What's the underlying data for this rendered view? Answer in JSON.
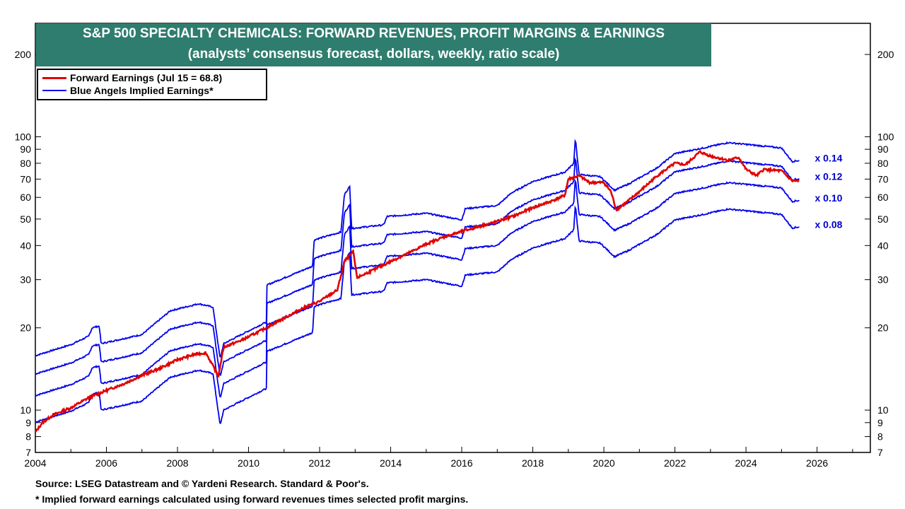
{
  "title": {
    "line1": "S&P 500 SPECIALTY CHEMICALS: FORWARD REVENUES, PROFIT MARGINS & EARNINGS",
    "line2": "(analysts’ consensus forecast, dollars, weekly, ratio scale)"
  },
  "legend": {
    "items": [
      {
        "label": "Forward Earnings (Jul 15 = 68.8)",
        "color": "#e00000"
      },
      {
        "label": "Blue Angels Implied Earnings*",
        "color": "#0000ee"
      }
    ]
  },
  "footer": {
    "source": "Source: LSEG Datastream and © Yardeni Research. Standard & Poor's.",
    "note": "* Implied forward earnings calculated using forward revenues times selected profit margins."
  },
  "colors": {
    "accent": "#2e7d6e",
    "earnings": "#e00000",
    "implied": "#0000ee",
    "multiplier_text": "#0000cc"
  },
  "chart_data": {
    "type": "line",
    "y_scale": "log",
    "ylim": [
      7,
      260
    ],
    "xlim": [
      2004,
      2027.5
    ],
    "x_ticks": [
      "2004",
      "2006",
      "2008",
      "2010",
      "2012",
      "2014",
      "2016",
      "2018",
      "2020",
      "2022",
      "2024",
      "2026"
    ],
    "y_ticks": [
      "7",
      "8",
      "9",
      "10",
      "20",
      "30",
      "40",
      "50",
      "60",
      "70",
      "80",
      "90",
      "100",
      "200"
    ],
    "grid": false,
    "legend_position": "top-left",
    "forward_revenues_per_share": [
      [
        2004.0,
        113
      ],
      [
        2005.0,
        124
      ],
      [
        2005.5,
        133
      ],
      [
        2005.6,
        143
      ],
      [
        2005.8,
        145
      ],
      [
        2005.85,
        125
      ],
      [
        2007.0,
        135
      ],
      [
        2007.8,
        165
      ],
      [
        2008.6,
        175
      ],
      [
        2009.0,
        170
      ],
      [
        2009.2,
        110
      ],
      [
        2009.3,
        125
      ],
      [
        2009.8,
        135
      ],
      [
        2010.5,
        150
      ],
      [
        2010.52,
        205
      ],
      [
        2011.8,
        240
      ],
      [
        2011.85,
        300
      ],
      [
        2012.6,
        320
      ],
      [
        2012.7,
        440
      ],
      [
        2012.85,
        470
      ],
      [
        2012.9,
        330
      ],
      [
        2013.8,
        340
      ],
      [
        2013.9,
        365
      ],
      [
        2015.0,
        375
      ],
      [
        2016.0,
        355
      ],
      [
        2016.1,
        390
      ],
      [
        2017.0,
        400
      ],
      [
        2017.4,
        445
      ],
      [
        2018.0,
        490
      ],
      [
        2018.9,
        530
      ],
      [
        2019.15,
        570
      ],
      [
        2019.2,
        710
      ],
      [
        2019.25,
        600
      ],
      [
        2019.3,
        520
      ],
      [
        2019.9,
        510
      ],
      [
        2020.3,
        455
      ],
      [
        2020.7,
        480
      ],
      [
        2021.0,
        505
      ],
      [
        2021.5,
        550
      ],
      [
        2022.0,
        620
      ],
      [
        2022.8,
        650
      ],
      [
        2023.5,
        680
      ],
      [
        2024.0,
        670
      ],
      [
        2024.5,
        660
      ],
      [
        2025.0,
        650
      ],
      [
        2025.3,
        580
      ],
      [
        2025.5,
        585
      ]
    ],
    "forward_earnings": [
      [
        2004.0,
        8.3
      ],
      [
        2004.2,
        9.0
      ],
      [
        2004.5,
        9.6
      ],
      [
        2005.0,
        10.2
      ],
      [
        2005.5,
        11.1
      ],
      [
        2006.0,
        11.8
      ],
      [
        2006.5,
        12.5
      ],
      [
        2007.0,
        13.4
      ],
      [
        2007.5,
        14.2
      ],
      [
        2008.0,
        15.3
      ],
      [
        2008.5,
        16.0
      ],
      [
        2008.8,
        16.2
      ],
      [
        2009.0,
        14.5
      ],
      [
        2009.15,
        13.3
      ],
      [
        2009.3,
        17.0
      ],
      [
        2009.8,
        18.0
      ],
      [
        2010.5,
        20.0
      ],
      [
        2011.0,
        21.7
      ],
      [
        2011.5,
        23.5
      ],
      [
        2012.0,
        25.0
      ],
      [
        2012.5,
        27.5
      ],
      [
        2012.7,
        35.0
      ],
      [
        2012.95,
        38.0
      ],
      [
        2013.05,
        30.5
      ],
      [
        2013.5,
        32.5
      ],
      [
        2014.0,
        35.0
      ],
      [
        2014.5,
        37.5
      ],
      [
        2015.0,
        40.5
      ],
      [
        2015.5,
        43.0
      ],
      [
        2016.0,
        45.0
      ],
      [
        2016.5,
        47.0
      ],
      [
        2017.0,
        49.0
      ],
      [
        2017.5,
        51.5
      ],
      [
        2018.0,
        55.0
      ],
      [
        2018.5,
        58.0
      ],
      [
        2018.9,
        61.0
      ],
      [
        2019.0,
        70.0
      ],
      [
        2019.3,
        72.0
      ],
      [
        2019.6,
        68.0
      ],
      [
        2020.0,
        68.0
      ],
      [
        2020.2,
        63.0
      ],
      [
        2020.35,
        54.0
      ],
      [
        2020.6,
        57.0
      ],
      [
        2021.0,
        63.0
      ],
      [
        2021.5,
        72.0
      ],
      [
        2022.0,
        80.0
      ],
      [
        2022.3,
        79.0
      ],
      [
        2022.7,
        88.0
      ],
      [
        2023.0,
        85.0
      ],
      [
        2023.5,
        82.0
      ],
      [
        2023.8,
        84.0
      ],
      [
        2024.0,
        76.0
      ],
      [
        2024.3,
        72.0
      ],
      [
        2024.5,
        76.0
      ],
      [
        2025.0,
        75.0
      ],
      [
        2025.3,
        69.0
      ],
      [
        2025.5,
        68.8
      ]
    ],
    "series": [
      {
        "multiplier": 0.14,
        "label": "x 0.14"
      },
      {
        "multiplier": 0.12,
        "label": "x 0.12"
      },
      {
        "multiplier": 0.1,
        "label": "x 0.10"
      },
      {
        "multiplier": 0.08,
        "label": "x 0.08"
      }
    ]
  }
}
